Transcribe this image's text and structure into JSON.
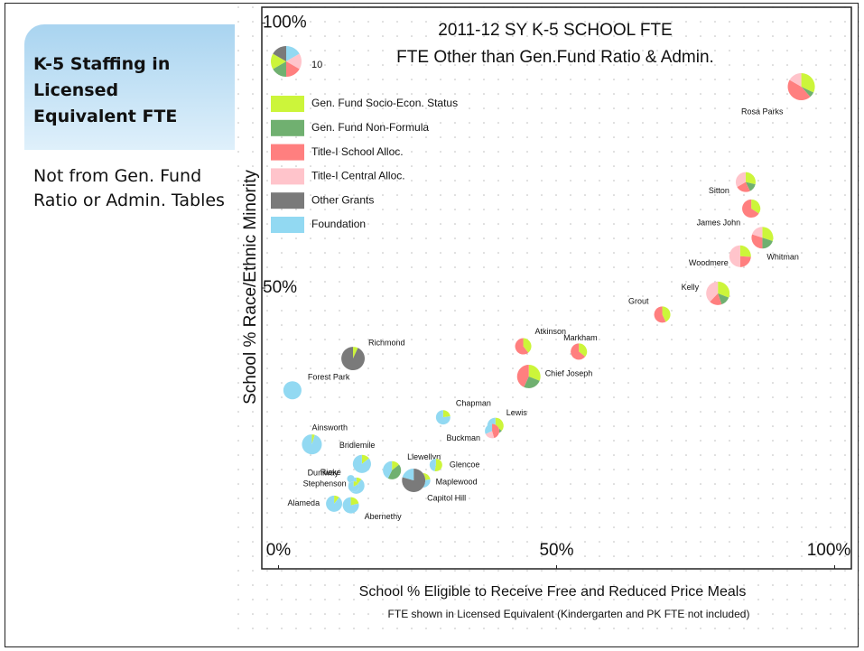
{
  "sidebar": {
    "heading": "K-5 Staffing in Licensed Equivalent FTE",
    "text": "Not from Gen. Fund Ratio or Admin. Tables"
  },
  "chart_data": {
    "type": "scatter",
    "title": "2011-12 SY K-5 SCHOOL FTE",
    "subtitle": "FTE Other than Gen.Fund Ratio & Admin.",
    "x_label": "School % Eligible to Receive Free and Reduced Price Meals",
    "y_label": "School % Race/Ethnic Minority",
    "note": "FTE shown in Licensed Equivalent (Kindergarten and PK FTE not included)",
    "xlim": [
      -3,
      103
    ],
    "ylim": [
      -3,
      103
    ],
    "xticks": [
      {
        "value": 0,
        "label": "0%"
      },
      {
        "value": 50,
        "label": "50%"
      },
      {
        "value": 100,
        "label": "100%"
      }
    ],
    "yticks": [
      {
        "value": 50,
        "label": "50%"
      },
      {
        "value": 100,
        "label": "100%"
      }
    ],
    "size_legend": 10,
    "labels": [
      "Rosa Parks",
      "Sitton",
      "James John",
      "Whitman",
      "Woodmere",
      "Kelly",
      "Grout",
      "Atkinson",
      "Markham",
      "Chief Joseph",
      "Richmond",
      "Forest Park",
      "Chapman",
      "Lewis",
      "Buckman",
      "Ainsworth",
      "Bridlemile",
      "Llewellyn",
      "Glencoe",
      "Maplewood",
      "Capitol Hill",
      "Rieke",
      "Duniway",
      "Stephenson",
      "Alameda",
      "Abernethy"
    ],
    "x": [
      94,
      84,
      85,
      87,
      83,
      79,
      69,
      44,
      54,
      45,
      13.4,
      2.5,
      29.6,
      39,
      38.4,
      6,
      15,
      20.4,
      28.3,
      26,
      24.3,
      14,
      13,
      13.5,
      10,
      13
    ],
    "y": [
      88,
      70,
      65,
      59.5,
      56,
      49,
      45,
      39,
      38,
      33.3,
      36.7,
      30.7,
      25.6,
      24,
      23,
      20.5,
      16.8,
      15.6,
      16.6,
      13.7,
      13.7,
      12.7,
      14,
      12.5,
      9.3,
      9
    ],
    "series": [
      {
        "name": "Gen. Fund Socio-Econ. Status",
        "color": "#ccf53a",
        "values": [
          2.5,
          1.2,
          1.2,
          1.5,
          1.3,
          1.8,
          1.2,
          1.1,
          1.0,
          1.8,
          0.4,
          0,
          0.5,
          1.0,
          0,
          0.2,
          0.5,
          0.5,
          0.9,
          0.5,
          0,
          0.3,
          0,
          0.2,
          0.3,
          0.6
        ]
      },
      {
        "name": "Gen. Fund Non-Formula",
        "color": "#70b070",
        "values": [
          0.5,
          0.6,
          0,
          1.0,
          0,
          0.8,
          0,
          0,
          0,
          1.5,
          0,
          0,
          0,
          0.6,
          0,
          0,
          0,
          1.5,
          0,
          0,
          0,
          0,
          0,
          0,
          0,
          0
        ]
      },
      {
        "name": "Title-I School Alloc.",
        "color": "#ff7f7f",
        "values": [
          3.5,
          1.0,
          2.3,
          1.5,
          1.2,
          1.0,
          1.6,
          1.7,
          1.8,
          2.5,
          0,
          0,
          0,
          0,
          1.0,
          0,
          0,
          0,
          0,
          0,
          0,
          0,
          0,
          0,
          0,
          0
        ]
      },
      {
        "name": "Title-I Central Alloc.",
        "color": "#ffc4cb",
        "values": [
          1.3,
          1.4,
          0,
          1.0,
          2.5,
          2.2,
          0,
          0,
          0,
          0,
          0,
          0,
          0,
          0,
          0.5,
          0,
          0,
          0,
          0,
          0,
          0,
          0,
          0,
          0,
          0,
          0
        ]
      },
      {
        "name": "Other Grants",
        "color": "#7a7a7a",
        "values": [
          0,
          0,
          0,
          0,
          0,
          0,
          0,
          0,
          0,
          0,
          5.4,
          0,
          0,
          0,
          0,
          0,
          0,
          0,
          0,
          0,
          4.6,
          0,
          0,
          0,
          0,
          0
        ]
      },
      {
        "name": "Foundation",
        "color": "#92d9f2",
        "values": [
          0,
          0,
          0,
          0,
          0,
          0,
          0,
          0,
          0,
          0,
          0,
          3.5,
          1.7,
          1.2,
          0.7,
          4.0,
          3.0,
          1.5,
          0.8,
          1.7,
          1.2,
          2.5,
          0.6,
          1.0,
          2.5,
          2.2
        ]
      }
    ]
  }
}
